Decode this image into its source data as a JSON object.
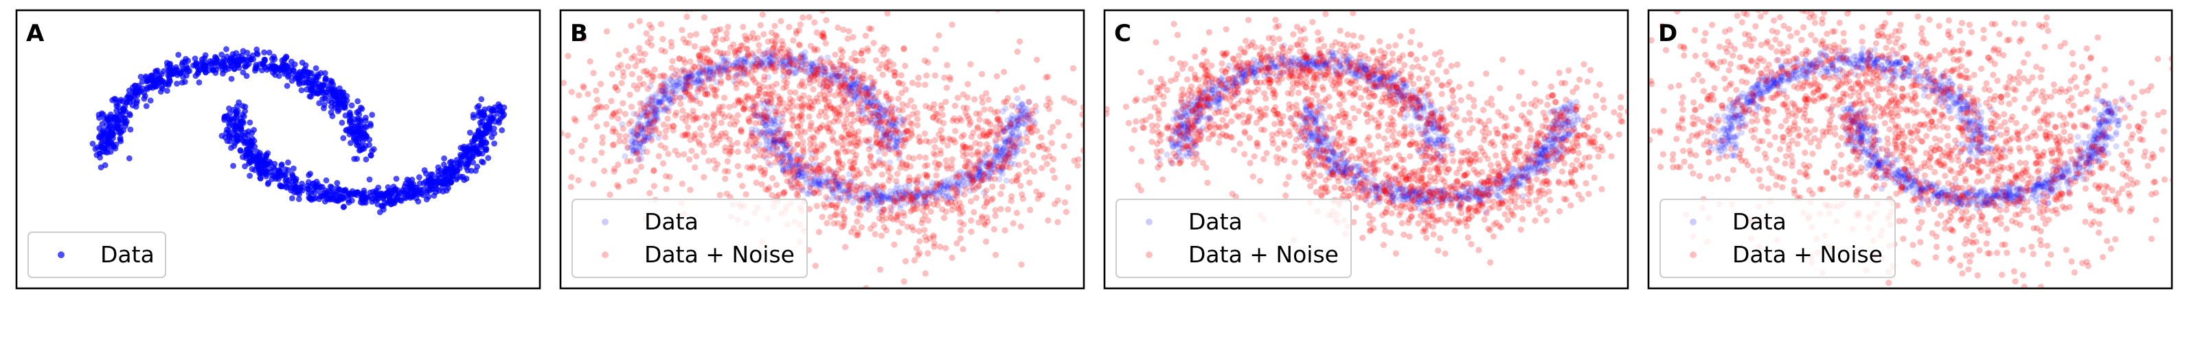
{
  "chart_data": [
    {
      "type": "scatter",
      "panel_label": "A",
      "title": "",
      "xlabel": "",
      "ylabel": "",
      "axes_visible": false,
      "grid": false,
      "legend_position": "lower-left",
      "series": [
        {
          "name": "Data",
          "color": "#0000ff",
          "alpha": 0.7,
          "shape": "two-moons",
          "n": 1400,
          "noise": 0.06
        }
      ]
    },
    {
      "type": "scatter",
      "panel_label": "B",
      "title": "",
      "xlabel": "",
      "ylabel": "",
      "axes_visible": false,
      "grid": false,
      "legend_position": "lower-left",
      "series": [
        {
          "name": "Data",
          "color": "#0000ff",
          "alpha": 0.15,
          "shape": "two-moons",
          "n": 1400,
          "noise": 0.06
        },
        {
          "name": "Data + Noise",
          "color": "#ff0000",
          "alpha": 0.25,
          "shape": "two-moons-noisy",
          "n": 1800,
          "noise": 0.35
        }
      ]
    },
    {
      "type": "scatter",
      "panel_label": "C",
      "title": "",
      "xlabel": "",
      "ylabel": "",
      "axes_visible": false,
      "grid": false,
      "legend_position": "lower-left",
      "series": [
        {
          "name": "Data",
          "color": "#0000ff",
          "alpha": 0.15,
          "shape": "two-moons",
          "n": 1400,
          "noise": 0.06
        },
        {
          "name": "Data + Noise",
          "color": "#ff0000",
          "alpha": 0.25,
          "shape": "two-moons-noisy",
          "n": 1800,
          "noise": 0.25
        }
      ]
    },
    {
      "type": "scatter",
      "panel_label": "D",
      "title": "",
      "xlabel": "",
      "ylabel": "",
      "axes_visible": false,
      "grid": false,
      "legend_position": "lower-left",
      "series": [
        {
          "name": "Data",
          "color": "#0000ff",
          "alpha": 0.15,
          "shape": "two-moons",
          "n": 1400,
          "noise": 0.06
        },
        {
          "name": "Data + Noise",
          "color": "#ff0000",
          "alpha": 0.25,
          "shape": "two-moons-noisy",
          "n": 1800,
          "noise": 0.5
        }
      ]
    }
  ]
}
